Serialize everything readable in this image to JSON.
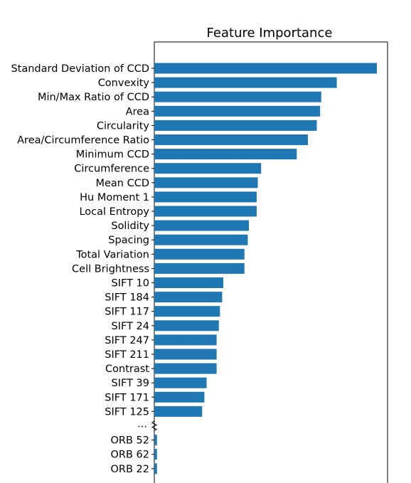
{
  "chart_data": {
    "type": "bar",
    "orientation": "horizontal",
    "title": "Feature Importance",
    "xlabel": "",
    "ylabel": "",
    "grid": false,
    "bar_color": "#1f77b4",
    "break_label": "...",
    "categories": [
      "Standard Deviation of CCD",
      "Convexity",
      "Min/Max Ratio of CCD",
      "Area",
      "Circularity",
      "Area/Circumference Ratio",
      "Minimum CCD",
      "Circumference",
      "Mean CCD",
      "Hu Moment 1",
      "Local Entropy",
      "Solidity",
      "Spacing",
      "Total Variation",
      "Cell Brightness",
      "SIFT 10",
      "SIFT 184",
      "SIFT 117",
      "SIFT 24",
      "SIFT 247",
      "SIFT 211",
      "Contrast",
      "SIFT 39",
      "SIFT 171",
      "SIFT 125",
      "",
      "ORB 52",
      "ORB 62",
      "ORB 22"
    ],
    "values": [
      1.0,
      0.82,
      0.75,
      0.745,
      0.73,
      0.69,
      0.64,
      0.48,
      0.465,
      0.46,
      0.46,
      0.425,
      0.42,
      0.405,
      0.405,
      0.31,
      0.305,
      0.295,
      0.29,
      0.28,
      0.28,
      0.28,
      0.235,
      0.225,
      0.215,
      null,
      0.012,
      0.012,
      0.012
    ],
    "xlim": [
      0,
      1.05
    ]
  }
}
